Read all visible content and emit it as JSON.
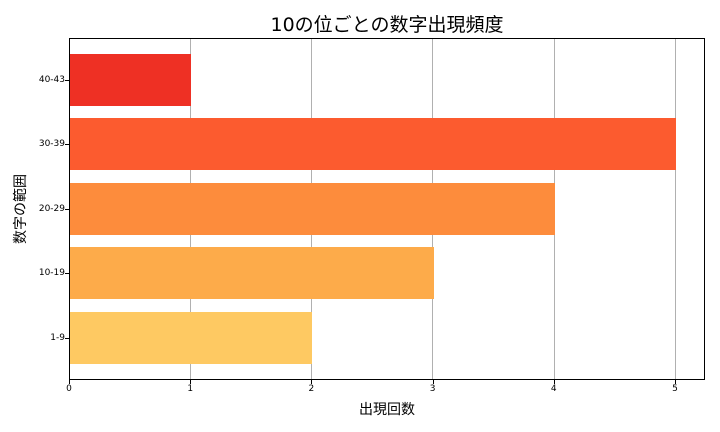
{
  "chart_data": {
    "type": "bar",
    "orientation": "horizontal",
    "title": "10の位ごとの数字出現頻度",
    "xlabel": "出現回数",
    "ylabel": "数字の範囲",
    "categories": [
      "1-9",
      "10-19",
      "20-29",
      "30-39",
      "40-43"
    ],
    "values": [
      2,
      3,
      4,
      5,
      1
    ],
    "colors": [
      "#fec962",
      "#fdab4a",
      "#fd8c3c",
      "#fc5b2f",
      "#ee3024"
    ],
    "xlim": [
      0,
      5.25
    ],
    "xticks": [
      "0",
      "1",
      "2",
      "3",
      "4",
      "5"
    ],
    "grid": "x",
    "legend": null
  }
}
